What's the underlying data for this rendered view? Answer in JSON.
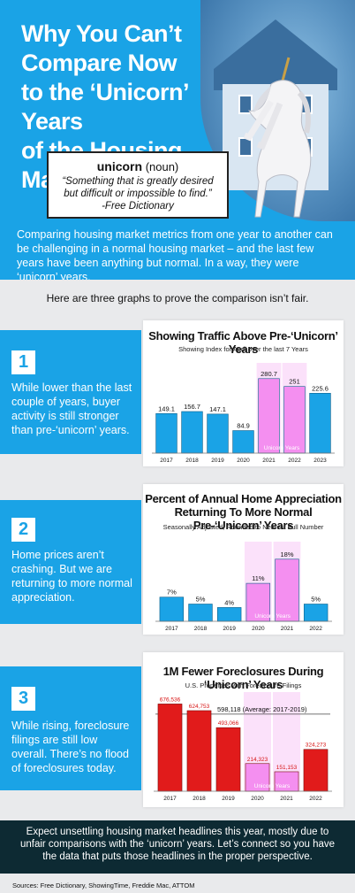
{
  "header": {
    "title_lines": [
      "Why You Can’t",
      "Compare Now",
      "to the ‘Unicorn’ Years",
      "of the Housing Market"
    ],
    "definition_word": "unicorn",
    "definition_pos": "(noun)",
    "definition_lines": [
      "“Something that is greatly desired",
      "but difficult or impossible to find.”",
      "-Free Dictionary"
    ],
    "intro": "Comparing housing market metrics from one year to another can be challenging in a normal housing market – and the last few years have been anything but normal. In a way, they were ‘unicorn’ years."
  },
  "lead": "Here are three graphs to prove the comparison isn’t fair.",
  "sections": [
    {
      "number": "1",
      "text": "While lower than the last couple of years, buyer activity is still stronger than pre-‘unicorn’ years."
    },
    {
      "number": "2",
      "text": "Home prices aren’t crashing. But we are returning to more normal appreciation."
    },
    {
      "number": "3",
      "text": "While rising, foreclosure filings are still low overall. There’s no flood of foreclosures today."
    }
  ],
  "footer": "Expect unsettling housing market headlines this year, mostly due to unfair comparisons with the ‘unicorn’ years. Let’s connect so you have the data that puts those headlines in the proper perspective.",
  "sources": "Sources: Free Dictionary, ShowingTime, Freddie Mac, ATTOM",
  "colors": {
    "blue": "#1aa3e6",
    "pink": "#f48ff0",
    "red": "#e11b1b",
    "dark": "#0d2a33"
  },
  "chart_data": [
    {
      "type": "bar",
      "title": "Showing Traffic Above Pre-‘Unicorn’ Years",
      "subtitle": "Showing Index for April over the last 7 Years",
      "categories": [
        "2017",
        "2018",
        "2019",
        "2020",
        "2021",
        "2022",
        "2023"
      ],
      "values": [
        149.1,
        156.7,
        147.1,
        84.9,
        280.7,
        251,
        225.6
      ],
      "value_labels": [
        "149.1",
        "156.7",
        "147.1",
        "84.9",
        "280.7",
        "251",
        "225.6"
      ],
      "highlight": [
        "2021",
        "2022"
      ],
      "highlight_label": "Unicorn Years",
      "ylim": [
        0,
        300
      ]
    },
    {
      "type": "bar",
      "title_lines": [
        "Percent of Annual Home Appreciation",
        "Returning To More Normal Pre-‘Unicorn’ Years"
      ],
      "subtitle": "Seasonally Adjusted, Rounded to Nearest Full Number",
      "categories": [
        "2017",
        "2018",
        "2019",
        "2020",
        "2021",
        "2022"
      ],
      "values": [
        7,
        5,
        4,
        11,
        18,
        5
      ],
      "value_labels": [
        "7%",
        "5%",
        "4%",
        "11%",
        "18%",
        "5%"
      ],
      "highlight": [
        "2020",
        "2021"
      ],
      "highlight_label": "Unicorn Years",
      "ylim": [
        0,
        20
      ]
    },
    {
      "type": "bar",
      "title": "1M Fewer Foreclosures During ‘Unicorn’ Years",
      "subtitle": "U.S. Properties with Foreclosure Filings",
      "categories": [
        "2017",
        "2018",
        "2019",
        "2020",
        "2021",
        "2022"
      ],
      "values": [
        676536,
        624753,
        493066,
        214323,
        151153,
        324273
      ],
      "value_labels": [
        "676,536",
        "624,753",
        "493,066",
        "214,323",
        "151,153",
        "324,273"
      ],
      "highlight": [
        "2020",
        "2021"
      ],
      "highlight_label": "Unicorn Years",
      "reference_value": 598118,
      "reference_label": "598,118 (Average: 2017-2019)",
      "ylim": [
        0,
        700000
      ]
    }
  ]
}
